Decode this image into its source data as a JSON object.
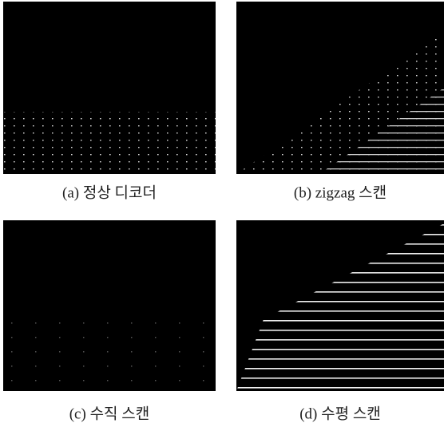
{
  "figure": {
    "panels": [
      {
        "caption": "(a) 정상 디코더"
      },
      {
        "caption": "(b) zigzag 스캔"
      },
      {
        "caption": "(c) 수직 스캔"
      },
      {
        "caption": "(d) 수평 스캔"
      }
    ]
  }
}
